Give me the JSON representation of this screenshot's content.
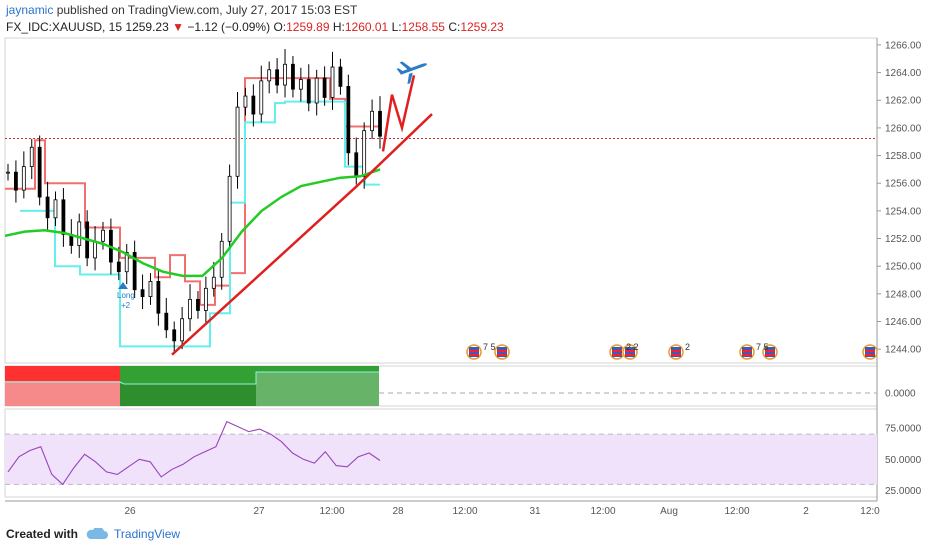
{
  "header": {
    "author": "jaynamic",
    "published": "published on TradingView.com, July 27, 2017 15:03 EST"
  },
  "quote": {
    "symbol": "FX_IDC:XAUUSD, 15",
    "last": "1259.23",
    "change": "−1.12 (−0.09%)",
    "open_label": "O:",
    "open": "1259.89",
    "high_label": "H:",
    "high": "1260.01",
    "low_label": "L:",
    "low": "1258.55",
    "close_label": "C:",
    "close": "1259.23"
  },
  "footer": {
    "created": "Created with",
    "brand": "TradingView"
  },
  "colors": {
    "candle": "#000000",
    "trendline": "#e02020",
    "ma_green": "#22cc22",
    "stop_red": "#f07070",
    "stop_cyan": "#66eeee",
    "price_line": "#c03030",
    "rsi_line": "#9944bb",
    "rsi_band": "#f0e2fa",
    "plane": "#2a7cc9",
    "ind_red": "#ff3030",
    "ind_green": "#33a033"
  },
  "chart_data": [
    {
      "type": "candlestick",
      "title": "FX_IDC:XAUUSD, 15",
      "ylim": [
        1243.0,
        1266.5
      ],
      "y_ticks": [
        "1266.00",
        "1264.00",
        "1262.00",
        "1260.00",
        "1258.00",
        "1256.00",
        "1254.00",
        "1252.00",
        "1250.00",
        "1248.00",
        "1246.00",
        "1244.00"
      ],
      "x_ticks": [
        "26",
        "27",
        "12:00",
        "28",
        "12:00",
        "31",
        "12:00",
        "Aug",
        "12:00",
        "2",
        "12:0"
      ],
      "current_price": 1259.23,
      "close_path": [
        1256.8,
        1255.5,
        1257.2,
        1258.6,
        1255.0,
        1253.5,
        1254.8,
        1252.3,
        1251.5,
        1253.2,
        1250.6,
        1251.8,
        1252.6,
        1250.3,
        1249.6,
        1251.0,
        1248.3,
        1247.8,
        1248.9,
        1246.6,
        1245.4,
        1244.6,
        1246.2,
        1247.6,
        1246.8,
        1248.4,
        1249.2,
        1251.8,
        1256.5,
        1261.5,
        1262.3,
        1261.0,
        1263.4,
        1264.2,
        1263.1,
        1264.6,
        1262.8,
        1263.5,
        1261.8,
        1263.6,
        1262.2,
        1264.4,
        1263.0,
        1258.2,
        1256.5,
        1259.8,
        1261.2,
        1259.4
      ],
      "moving_average": [
        1252.2,
        1252.5,
        1252.6,
        1252.4,
        1252.0,
        1251.6,
        1251.0,
        1250.2,
        1249.6,
        1249.3,
        1249.3,
        1250.6,
        1252.5,
        1254.0,
        1255.0,
        1255.8,
        1256.1,
        1256.4,
        1256.5,
        1257.0
      ],
      "trendline": [
        1243.6,
        1255.8,
        1261.0
      ],
      "forecast_path": [
        1258.3,
        1262.4,
        1260.0,
        1263.8
      ],
      "stop_line_red": [
        1255.6,
        1259.1,
        1256.0,
        1252.8,
        1250.6,
        1249.2,
        1250.8,
        1248.9,
        1247.2,
        1248.6,
        1249.5,
        1263.6,
        1262.1,
        1260.1
      ],
      "stop_line_cyan": [
        1254.0,
        1250.0,
        1249.4,
        1244.2,
        1246.6,
        1254.6,
        1260.4,
        1261.8,
        1261.9,
        1257.2,
        1255.9
      ],
      "annotations": [
        "Long",
        "+2"
      ],
      "event_badges": [
        "7 5",
        "2 2",
        "2",
        "7 5"
      ]
    },
    {
      "type": "area",
      "y_ticks": [
        "0.0000"
      ],
      "segments": [
        "red",
        "green"
      ]
    },
    {
      "type": "line",
      "ylim": [
        20,
        90
      ],
      "y_ticks": [
        "75.0000",
        "50.0000",
        "25.0000"
      ],
      "band": [
        30,
        70
      ],
      "values": [
        40,
        52,
        57,
        60,
        38,
        30,
        43,
        54,
        48,
        40,
        38,
        44,
        50,
        48,
        36,
        42,
        46,
        52,
        56,
        60,
        80,
        76,
        72,
        74,
        70,
        64,
        55,
        50,
        47,
        56,
        45,
        44,
        52,
        55,
        49
      ]
    }
  ]
}
